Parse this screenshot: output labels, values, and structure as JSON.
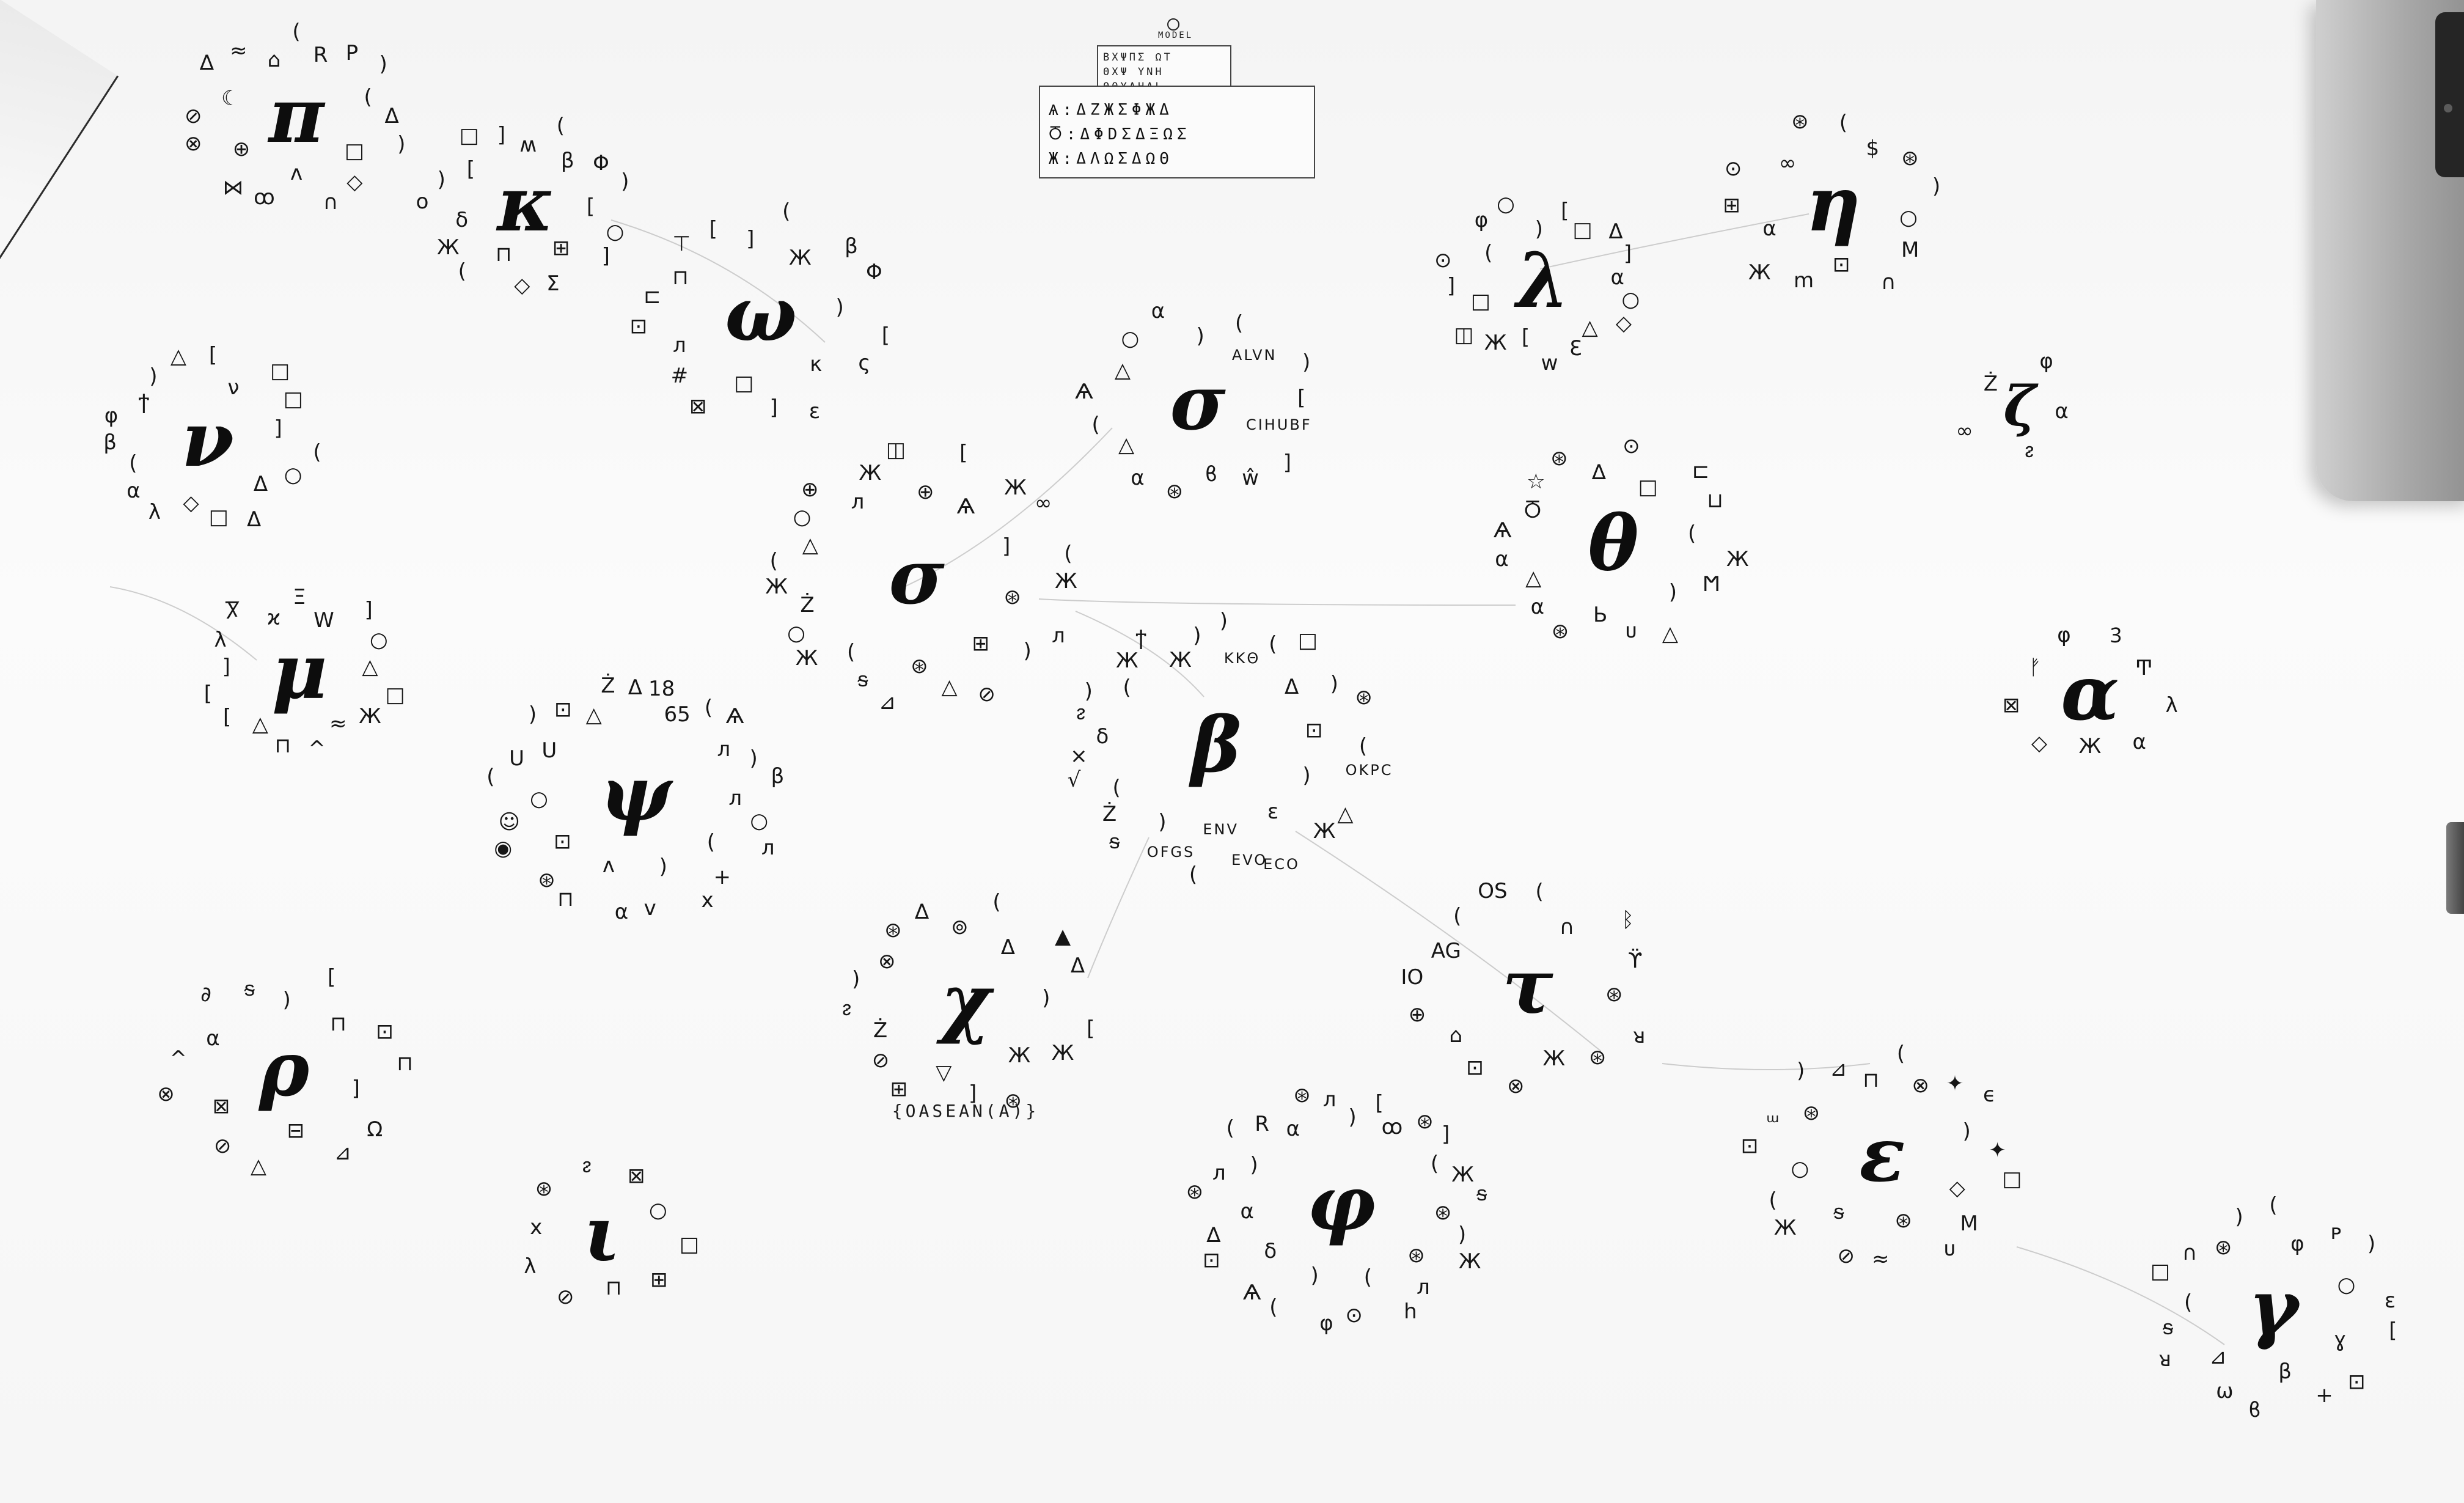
{
  "legend": {
    "title": "MODEL",
    "top_rows": [
      "ΒΧΨΠΣ ΩΤ",
      "ΘΧΨ ΥΝΗ",
      "ΘΘΥΛΗΔL"
    ],
    "bottom_rows": [
      "Ѧ:ΔΖЖΣΦЖΔ",
      "Ⴃ:ΔΦDΣΔΞΩΣ",
      "Ж:ΔΛΩΣΔΩΘ"
    ]
  },
  "clusters": [
    {
      "id": "pi",
      "center": "π",
      "glyphs": [
        "(",
        "R",
        "Ρ",
        ")",
        "(",
        "Δ",
        ")",
        "□",
        "◇",
        "∩",
        "ʌ",
        "ꝏ",
        "⋈",
        "⊕",
        "⊗",
        "⊘",
        "☾",
        "∆",
        "≈",
        "⌂"
      ]
    },
    {
      "id": "kappa",
      "center": "κ",
      "glyphs": [
        "(",
        "β",
        "Φ",
        ")",
        "[",
        "○",
        "]",
        "⊞",
        "Σ",
        "◇",
        "⊓",
        "(",
        "Ж",
        "δ",
        "ο",
        ")",
        "[",
        "□",
        "]",
        "ʍ"
      ]
    },
    {
      "id": "omega",
      "center": "ω",
      "glyphs": [
        "(",
        "Ж",
        "β",
        "Φ",
        ")",
        "[",
        "ς",
        "κ",
        "ε",
        "]",
        "□",
        "⊠",
        "#",
        "ᴫ",
        "⊡",
        "⊏",
        "⊓",
        "⊤",
        "[",
        "]"
      ]
    },
    {
      "id": "nu",
      "center": "ν",
      "glyphs": [
        "[",
        "ν",
        "□",
        "□",
        "]",
        "(",
        "○",
        "Δ",
        "Δ",
        "□",
        "◇",
        "λ",
        "α",
        "(",
        "β",
        "φ",
        "ϯ",
        ")",
        "△"
      ]
    },
    {
      "id": "omicron-top",
      "center": "σ",
      "glyphs": [
        "(",
        "ΑLVN",
        ")",
        "[",
        "CIHUBF",
        "]",
        "ŵ",
        "ϐ",
        "⊛",
        "α",
        "△",
        "(",
        "Ѧ",
        "△",
        "○",
        "α",
        ")"
      ]
    },
    {
      "id": "lambda",
      "center": "λ",
      "glyphs": [
        "[",
        "□",
        "Δ",
        "]",
        "α",
        "○",
        "◇",
        "△",
        "Ɛ",
        "w",
        "[",
        "Ж",
        "◫",
        "□",
        "]",
        "⊙",
        "(",
        "φ",
        "○",
        ")"
      ]
    },
    {
      "id": "eta",
      "center": "η",
      "glyphs": [
        "(",
        "$",
        "⊛",
        ")",
        "○",
        "M",
        "∩",
        "⊡",
        "m",
        "Ж",
        "α",
        "⊞",
        "⊙",
        "∞",
        "⊛"
      ]
    },
    {
      "id": "zeta",
      "center": "ζ",
      "glyphs": [
        "φ",
        "α",
        "ᴤ",
        "∞",
        "Ż"
      ]
    },
    {
      "id": "sigma-mid",
      "center": "σ",
      "glyphs": [
        "[",
        "Ѧ",
        "Ж",
        "∞",
        "]",
        "(",
        "Ж",
        "⊛",
        "ᴫ",
        ")",
        "⊞",
        "⊘",
        "△",
        "⊛",
        "⊿",
        "ᵴ",
        "(",
        "Ж",
        "○",
        "Ż",
        "Ж",
        "(",
        "△",
        "○",
        "⊕",
        "ᴫ",
        "Ж",
        "◫",
        "⊕"
      ]
    },
    {
      "id": "theta",
      "center": "θ",
      "glyphs": [
        "⊙",
        "□",
        "⊏",
        "⊔",
        "(",
        "Ж",
        "Ϻ",
        ")",
        "△",
        "ᴜ",
        "Ь",
        "⊛",
        "α",
        "△",
        "α",
        "Ѧ",
        "Ⴃ",
        "☆",
        "⊛",
        "∆"
      ]
    },
    {
      "id": "mu",
      "center": "μ",
      "glyphs": [
        "Ξ",
        "W",
        "]",
        "○",
        "△",
        "□",
        "Ж",
        "≈",
        "^",
        "⊓",
        "△",
        "[",
        "[",
        "]",
        "λ",
        "Ⴟ",
        "ϰ"
      ]
    },
    {
      "id": "alpha",
      "center": "α",
      "glyphs": [
        "Ꝫ",
        "Ͳ",
        "λ",
        "α",
        "Ж",
        "◇",
        "⊠",
        "ᚠ",
        "φ"
      ]
    },
    {
      "id": "psi",
      "center": "ψ",
      "glyphs": [
        "18",
        "65",
        "(",
        "Ѧ",
        "ᴫ",
        ")",
        "β",
        "ᴫ",
        "○",
        "ᴫ",
        "(",
        "+",
        "x",
        ")",
        "ᴠ",
        "α",
        "ʌ",
        "⊓",
        "⊛",
        "⊡",
        "◉",
        "☺",
        "○",
        "(",
        "U",
        "U",
        ")",
        "⊡",
        "△",
        "Ż",
        "Δ"
      ]
    },
    {
      "id": "beta",
      "center": "β",
      "glyphs": [
        ")",
        "KKΘ",
        "(",
        "□",
        "Δ",
        ")",
        "⊛",
        "⊡",
        "(",
        "OKPC",
        ")",
        "△",
        "Ж",
        "ε",
        "ECO",
        "EVO",
        "ENV",
        "(",
        "OFGS",
        ")",
        "ᵴ",
        "Ż",
        "(",
        "√",
        "×",
        "δ",
        "ᴤ",
        ")",
        "(",
        "Ж",
        "ϯ",
        "Ж",
        ")"
      ]
    },
    {
      "id": "rho",
      "center": "ρ",
      "glyphs": [
        "[",
        "⊓",
        "⊡",
        "⊓",
        "]",
        "Ω",
        "⊿",
        "⊟",
        "△",
        "⊘",
        "⊠",
        "⊗",
        "^",
        "α",
        "∂",
        "ᵴ",
        ")"
      ]
    },
    {
      "id": "chi",
      "center": "χ",
      "glyphs": [
        "(",
        "Δ",
        "▲",
        "Δ",
        ")",
        "[",
        "Ж",
        "Ж",
        "⊛",
        "]",
        "▽",
        "⊞",
        "⊘",
        "Ż",
        "ᴤ",
        ")",
        "⊗",
        "⊛",
        "∆",
        "⊚"
      ]
    },
    {
      "id": "tau",
      "center": "τ",
      "glyphs": [
        "(",
        "∩",
        "ᛒ",
        "ϔ",
        "⊛",
        "ᴚ",
        "⊛",
        "Ж",
        "⊗",
        "⊡",
        "⌂",
        "⊕",
        "IO",
        "AG",
        "(",
        "OS"
      ]
    },
    {
      "id": "iota",
      "center": "ι",
      "glyphs": [
        "⊠",
        "○",
        "□",
        "⊞",
        "⊓",
        "⊘",
        "λ",
        "x",
        "⊛",
        "ᴤ"
      ]
    },
    {
      "id": "phi",
      "center": "φ",
      "glyphs": [
        "[",
        "ꝏ",
        "⊛",
        "]",
        "(",
        "Ж",
        "ᵴ",
        "⊛",
        ")",
        "Ж",
        "⊛",
        "ᴫ",
        "h",
        "(",
        "⊙",
        "φ",
        ")",
        "(",
        "Ѧ",
        "δ",
        "⊡",
        "∆",
        "α",
        "⊛",
        "ᴫ",
        ")",
        "(",
        "R",
        "α",
        "⊛",
        "ᴫ",
        ")"
      ]
    },
    {
      "id": "epsilon",
      "center": "ε",
      "glyphs": [
        "(",
        "⊗",
        "✦",
        "ϵ",
        ")",
        "✦",
        "□",
        "◇",
        "M",
        "ᴜ",
        "⊛",
        "≈",
        "⊘",
        "ᵴ",
        "Ж",
        "(",
        "○",
        "⊡",
        "ᵚ",
        "⊛",
        ")",
        "⊿",
        "⊓"
      ]
    },
    {
      "id": "gamma",
      "center": "γ",
      "glyphs": [
        "(",
        "φ",
        "ᴘ",
        ")",
        "○",
        "ε",
        "[",
        "ɣ",
        "⊡",
        "+",
        "β",
        "ϐ",
        "ω",
        "⊿",
        "ᴚ",
        "ᵴ",
        "(",
        "□",
        "∩",
        "⊛",
        ")"
      ]
    }
  ],
  "captions": {
    "chi": "{OASEAN(A)}"
  }
}
